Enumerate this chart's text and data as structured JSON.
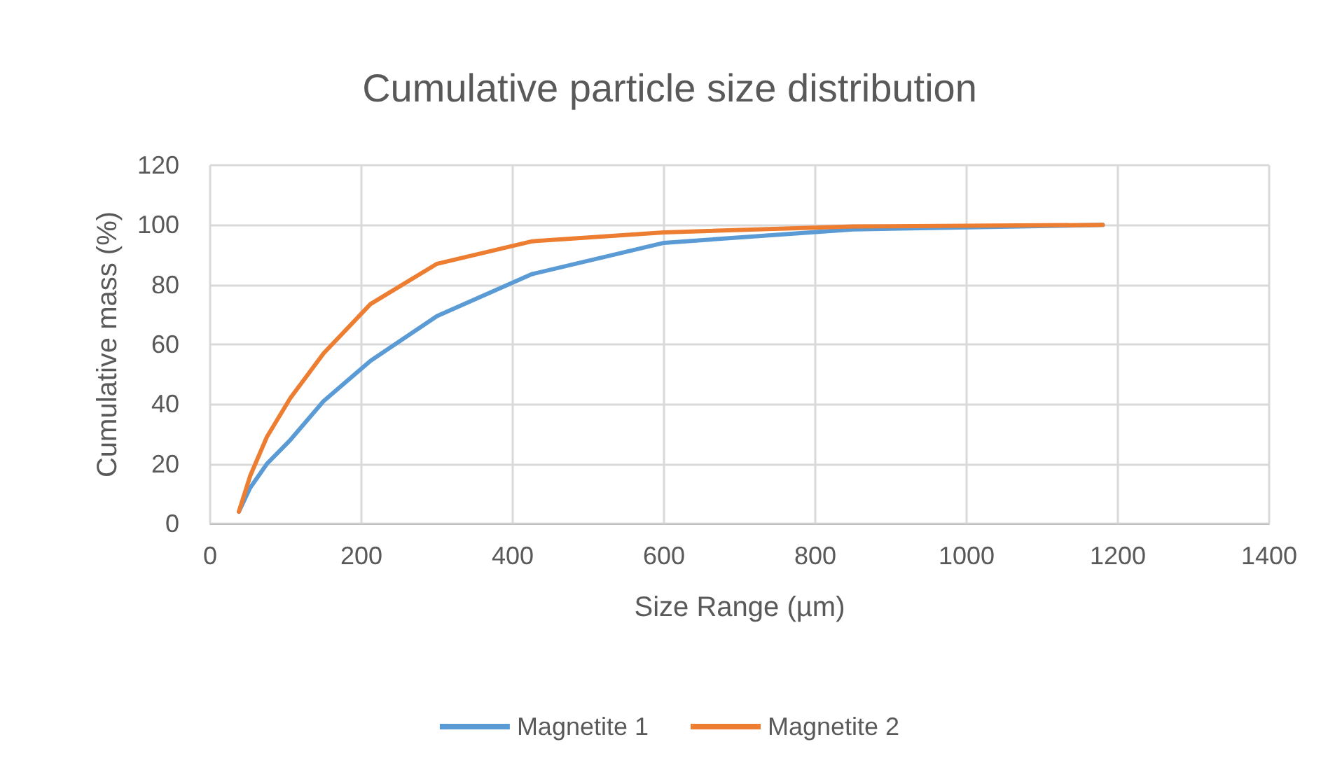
{
  "chart_data": {
    "type": "line",
    "title": "Cumulative particle size distribution",
    "xlabel": "Size Range (µm)",
    "ylabel": "Cumulative mass (%)",
    "x": [
      38,
      53,
      75,
      106,
      150,
      212,
      300,
      425,
      600,
      850,
      1180
    ],
    "series": [
      {
        "name": "Magnetite 1",
        "color": "#5b9bd5",
        "values": [
          4,
          12,
          20,
          28,
          41,
          54.5,
          69.5,
          83.5,
          94,
          98.5,
          100
        ]
      },
      {
        "name": "Magnetite 2",
        "color": "#ed7d31",
        "values": [
          4,
          16,
          29,
          42,
          57,
          73.5,
          87,
          94.5,
          97.5,
          99.5,
          100
        ]
      }
    ],
    "xlim": [
      0,
      1400
    ],
    "xticks": [
      0,
      200,
      400,
      600,
      800,
      1000,
      1200,
      1400
    ],
    "ylim": [
      0,
      120
    ],
    "yticks": [
      0,
      20,
      40,
      60,
      80,
      100,
      120
    ],
    "grid": true,
    "legend": "bottom",
    "marker": "none",
    "line_style": "solid"
  }
}
